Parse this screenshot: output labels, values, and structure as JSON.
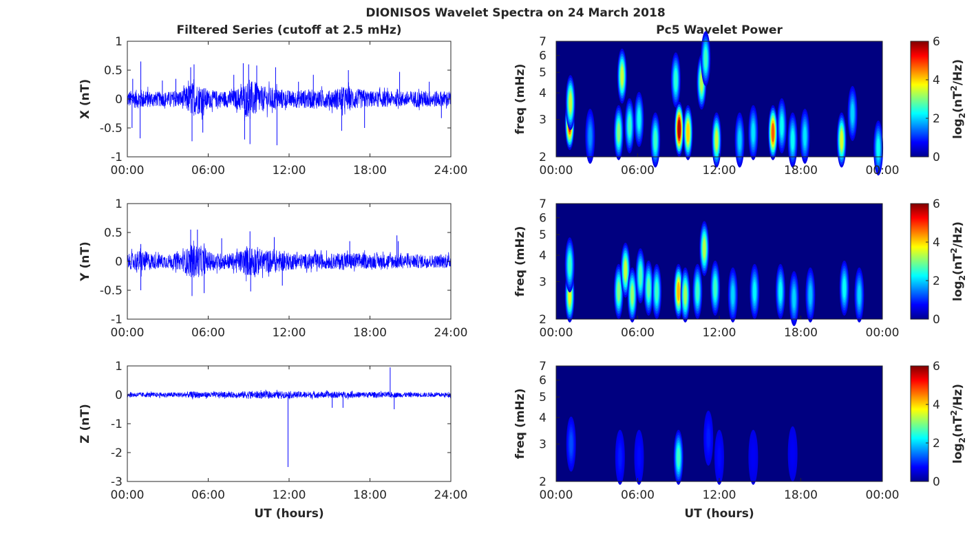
{
  "figure": {
    "title": "DIONISOS Wavelet Spectra on 24 March 2018",
    "left_title": "Filtered Series (cutoff at 2.5 mHz)",
    "right_title": "Pc5 Wavelet Power",
    "x_label": "UT (hours)",
    "colors": {
      "series": "#0000ff",
      "frame": "#262626"
    }
  },
  "chart_data": [
    {
      "type": "line",
      "panel": "X",
      "ylabel": "X (nT)",
      "xlim": [
        0,
        24
      ],
      "ylim": [
        -1,
        1
      ],
      "x_ticks": [
        "00:00",
        "06:00",
        "12:00",
        "18:00",
        "24:00"
      ],
      "y_ticks": [
        "1",
        "0.5",
        "0",
        "-0.5",
        "-1"
      ],
      "y_tick_values": [
        1,
        0.5,
        0,
        -0.5,
        -1
      ],
      "envelope_hours": [
        0,
        1,
        2,
        3,
        4,
        4.8,
        5.5,
        6,
        7,
        8,
        9,
        9.5,
        10,
        11,
        12,
        13,
        14,
        15,
        16,
        17,
        18,
        19,
        20,
        21,
        22,
        23,
        24
      ],
      "envelope_amplitude": [
        0.14,
        0.17,
        0.13,
        0.13,
        0.15,
        0.3,
        0.25,
        0.16,
        0.14,
        0.16,
        0.32,
        0.3,
        0.22,
        0.2,
        0.15,
        0.16,
        0.17,
        0.15,
        0.22,
        0.18,
        0.14,
        0.14,
        0.13,
        0.14,
        0.15,
        0.14,
        0.14
      ],
      "spikes": [
        {
          "x": 0.4,
          "y": 0.35
        },
        {
          "x": 0.35,
          "y": -0.5
        },
        {
          "x": 1.0,
          "y": 0.65
        },
        {
          "x": 0.95,
          "y": -0.68
        },
        {
          "x": 2.6,
          "y": 0.32
        },
        {
          "x": 3.6,
          "y": 0.35
        },
        {
          "x": 4.7,
          "y": 0.55
        },
        {
          "x": 4.8,
          "y": -0.73
        },
        {
          "x": 4.95,
          "y": 0.6
        },
        {
          "x": 5.6,
          "y": -0.58
        },
        {
          "x": 7.9,
          "y": 0.42
        },
        {
          "x": 8.6,
          "y": 0.62
        },
        {
          "x": 8.7,
          "y": -0.7
        },
        {
          "x": 9.0,
          "y": 0.6
        },
        {
          "x": 9.1,
          "y": -0.78
        },
        {
          "x": 9.6,
          "y": 0.58
        },
        {
          "x": 11.0,
          "y": 0.55
        },
        {
          "x": 11.1,
          "y": -0.8
        },
        {
          "x": 12.7,
          "y": 0.3
        },
        {
          "x": 13.8,
          "y": 0.42
        },
        {
          "x": 15.9,
          "y": -0.55
        },
        {
          "x": 16.4,
          "y": 0.5
        },
        {
          "x": 17.6,
          "y": -0.5
        },
        {
          "x": 20.2,
          "y": 0.47
        },
        {
          "x": 22.4,
          "y": 0.3
        },
        {
          "x": 23.3,
          "y": -0.33
        }
      ]
    },
    {
      "type": "line",
      "panel": "Y",
      "ylabel": "Y (nT)",
      "xlim": [
        0,
        24
      ],
      "ylim": [
        -1,
        1
      ],
      "x_ticks": [
        "00:00",
        "06:00",
        "12:00",
        "18:00",
        "24:00"
      ],
      "y_ticks": [
        "1",
        "0.5",
        "0",
        "-0.5",
        "-1"
      ],
      "y_tick_values": [
        1,
        0.5,
        0,
        -0.5,
        -1
      ],
      "envelope_hours": [
        0,
        1,
        2,
        3,
        4,
        4.8,
        5.5,
        6,
        7,
        8,
        9,
        9.5,
        10,
        11,
        12,
        13,
        14,
        15,
        16,
        17,
        18,
        19,
        20,
        21,
        22,
        23,
        24
      ],
      "envelope_amplitude": [
        0.12,
        0.2,
        0.13,
        0.12,
        0.15,
        0.3,
        0.27,
        0.17,
        0.14,
        0.15,
        0.26,
        0.28,
        0.2,
        0.2,
        0.15,
        0.13,
        0.14,
        0.13,
        0.15,
        0.15,
        0.12,
        0.13,
        0.13,
        0.12,
        0.12,
        0.11,
        0.12
      ],
      "spikes": [
        {
          "x": 1.0,
          "y": 0.3
        },
        {
          "x": 1.0,
          "y": -0.5
        },
        {
          "x": 4.7,
          "y": 0.55
        },
        {
          "x": 4.8,
          "y": -0.6
        },
        {
          "x": 5.2,
          "y": 0.55
        },
        {
          "x": 5.7,
          "y": -0.55
        },
        {
          "x": 7.0,
          "y": 0.4
        },
        {
          "x": 9.1,
          "y": 0.52
        },
        {
          "x": 9.15,
          "y": -0.52
        },
        {
          "x": 10.9,
          "y": 0.42
        },
        {
          "x": 11.5,
          "y": -0.42
        },
        {
          "x": 16.5,
          "y": 0.35
        },
        {
          "x": 20.0,
          "y": 0.45
        },
        {
          "x": 20.1,
          "y": 0.35
        }
      ]
    },
    {
      "type": "line",
      "panel": "Z",
      "ylabel": "Z (nT)",
      "xlim": [
        0,
        24
      ],
      "ylim": [
        -3,
        1
      ],
      "x_ticks": [
        "00:00",
        "06:00",
        "12:00",
        "18:00",
        "24:00"
      ],
      "y_ticks": [
        "1",
        "0",
        "-1",
        "-2",
        "-3"
      ],
      "y_tick_values": [
        1,
        0,
        -1,
        -2,
        -3
      ],
      "envelope_hours": [
        0,
        2,
        4,
        5,
        6,
        8,
        9,
        10,
        11,
        12,
        14,
        16,
        18,
        20,
        22,
        24
      ],
      "envelope_amplitude": [
        0.09,
        0.08,
        0.09,
        0.12,
        0.1,
        0.1,
        0.14,
        0.12,
        0.12,
        0.12,
        0.11,
        0.11,
        0.1,
        0.09,
        0.08,
        0.08
      ],
      "spikes": [
        {
          "x": 11.92,
          "y": -2.5
        },
        {
          "x": 19.5,
          "y": 0.95
        },
        {
          "x": 15.2,
          "y": -0.45
        },
        {
          "x": 16.0,
          "y": -0.45
        },
        {
          "x": 19.8,
          "y": -0.5
        }
      ]
    },
    {
      "type": "heatmap",
      "panel": "X power",
      "ylabel": "freq (mHz)",
      "colorbar_label": "log2(nT^2/Hz)",
      "x_ticks": [
        "00:00",
        "06:00",
        "12:00",
        "18:00",
        "00:00"
      ],
      "y_ticks": [
        "7",
        "6",
        "5",
        "4",
        "3",
        "2"
      ],
      "y_tick_values": [
        7,
        6,
        5,
        4,
        3,
        2
      ],
      "ylim_mhz": [
        2,
        7
      ],
      "yscale": "log",
      "clim": [
        0,
        6
      ],
      "colorbar_ticks": [
        "6",
        "4",
        "2",
        "0"
      ],
      "blobs": [
        {
          "t": 1.0,
          "f": 2.9,
          "v": 5.2
        },
        {
          "t": 1.05,
          "f": 3.6,
          "v": 3.4
        },
        {
          "t": 2.5,
          "f": 2.5,
          "v": 1.6
        },
        {
          "t": 4.6,
          "f": 2.6,
          "v": 3.0
        },
        {
          "t": 4.85,
          "f": 4.8,
          "v": 3.4
        },
        {
          "t": 5.4,
          "f": 2.8,
          "v": 2.6
        },
        {
          "t": 6.1,
          "f": 3.0,
          "v": 2.3
        },
        {
          "t": 7.3,
          "f": 2.4,
          "v": 2.6
        },
        {
          "t": 9.05,
          "f": 2.7,
          "v": 5.7
        },
        {
          "t": 8.8,
          "f": 4.6,
          "v": 2.5
        },
        {
          "t": 9.7,
          "f": 2.6,
          "v": 4.0
        },
        {
          "t": 10.7,
          "f": 4.5,
          "v": 3.3
        },
        {
          "t": 11.0,
          "f": 5.8,
          "v": 2.6
        },
        {
          "t": 11.8,
          "f": 2.4,
          "v": 3.4
        },
        {
          "t": 13.5,
          "f": 2.4,
          "v": 2.0
        },
        {
          "t": 14.5,
          "f": 2.6,
          "v": 2.1
        },
        {
          "t": 15.95,
          "f": 2.6,
          "v": 4.7
        },
        {
          "t": 16.6,
          "f": 2.8,
          "v": 2.3
        },
        {
          "t": 17.4,
          "f": 2.4,
          "v": 2.3
        },
        {
          "t": 18.3,
          "f": 2.5,
          "v": 2.1
        },
        {
          "t": 21.0,
          "f": 2.4,
          "v": 3.5
        },
        {
          "t": 21.8,
          "f": 3.2,
          "v": 2.0
        },
        {
          "t": 23.7,
          "f": 2.2,
          "v": 2.3
        }
      ]
    },
    {
      "type": "heatmap",
      "panel": "Y power",
      "ylabel": "freq (mHz)",
      "colorbar_label": "log2(nT^2/Hz)",
      "x_ticks": [
        "00:00",
        "06:00",
        "12:00",
        "18:00",
        "00:00"
      ],
      "y_ticks": [
        "7",
        "6",
        "5",
        "4",
        "3",
        "2"
      ],
      "y_tick_values": [
        7,
        6,
        5,
        4,
        3,
        2
      ],
      "ylim_mhz": [
        2,
        7
      ],
      "yscale": "log",
      "clim": [
        0,
        6
      ],
      "colorbar_ticks": [
        "6",
        "4",
        "2",
        "0"
      ],
      "blobs": [
        {
          "t": 1.0,
          "f": 2.6,
          "v": 3.6
        },
        {
          "t": 1.0,
          "f": 3.6,
          "v": 2.6
        },
        {
          "t": 4.6,
          "f": 2.7,
          "v": 3.0
        },
        {
          "t": 5.1,
          "f": 3.4,
          "v": 3.4
        },
        {
          "t": 5.6,
          "f": 2.6,
          "v": 3.1
        },
        {
          "t": 6.2,
          "f": 3.2,
          "v": 2.7
        },
        {
          "t": 6.8,
          "f": 2.8,
          "v": 2.8
        },
        {
          "t": 7.4,
          "f": 2.7,
          "v": 2.6
        },
        {
          "t": 9.0,
          "f": 2.7,
          "v": 4.2
        },
        {
          "t": 9.5,
          "f": 2.6,
          "v": 3.2
        },
        {
          "t": 10.4,
          "f": 2.7,
          "v": 2.6
        },
        {
          "t": 10.9,
          "f": 4.3,
          "v": 3.3
        },
        {
          "t": 11.7,
          "f": 2.8,
          "v": 2.6
        },
        {
          "t": 13.0,
          "f": 2.6,
          "v": 2.0
        },
        {
          "t": 14.6,
          "f": 2.7,
          "v": 2.2
        },
        {
          "t": 16.5,
          "f": 2.7,
          "v": 2.3
        },
        {
          "t": 17.5,
          "f": 2.5,
          "v": 2.0
        },
        {
          "t": 18.7,
          "f": 2.6,
          "v": 1.9
        },
        {
          "t": 21.2,
          "f": 2.8,
          "v": 2.3
        },
        {
          "t": 22.3,
          "f": 2.6,
          "v": 2.0
        }
      ]
    },
    {
      "type": "heatmap",
      "panel": "Z power",
      "ylabel": "freq (mHz)",
      "colorbar_label": "log2(nT^2/Hz)",
      "x_ticks": [
        "00:00",
        "06:00",
        "12:00",
        "18:00",
        "00:00"
      ],
      "y_ticks": [
        "7",
        "6",
        "5",
        "4",
        "3",
        "2"
      ],
      "y_tick_values": [
        7,
        6,
        5,
        4,
        3,
        2
      ],
      "ylim_mhz": [
        2,
        7
      ],
      "yscale": "log",
      "clim": [
        0,
        6
      ],
      "colorbar_ticks": [
        "6",
        "4",
        "2",
        "0"
      ],
      "blobs": [
        {
          "t": 1.1,
          "f": 3.0,
          "v": 1.2
        },
        {
          "t": 4.7,
          "f": 2.6,
          "v": 0.9
        },
        {
          "t": 6.1,
          "f": 2.6,
          "v": 0.8
        },
        {
          "t": 9.0,
          "f": 2.6,
          "v": 2.6
        },
        {
          "t": 11.2,
          "f": 3.2,
          "v": 0.9
        },
        {
          "t": 12.0,
          "f": 2.6,
          "v": 0.8
        },
        {
          "t": 14.5,
          "f": 2.6,
          "v": 0.7
        },
        {
          "t": 17.4,
          "f": 2.7,
          "v": 0.7
        }
      ]
    }
  ]
}
